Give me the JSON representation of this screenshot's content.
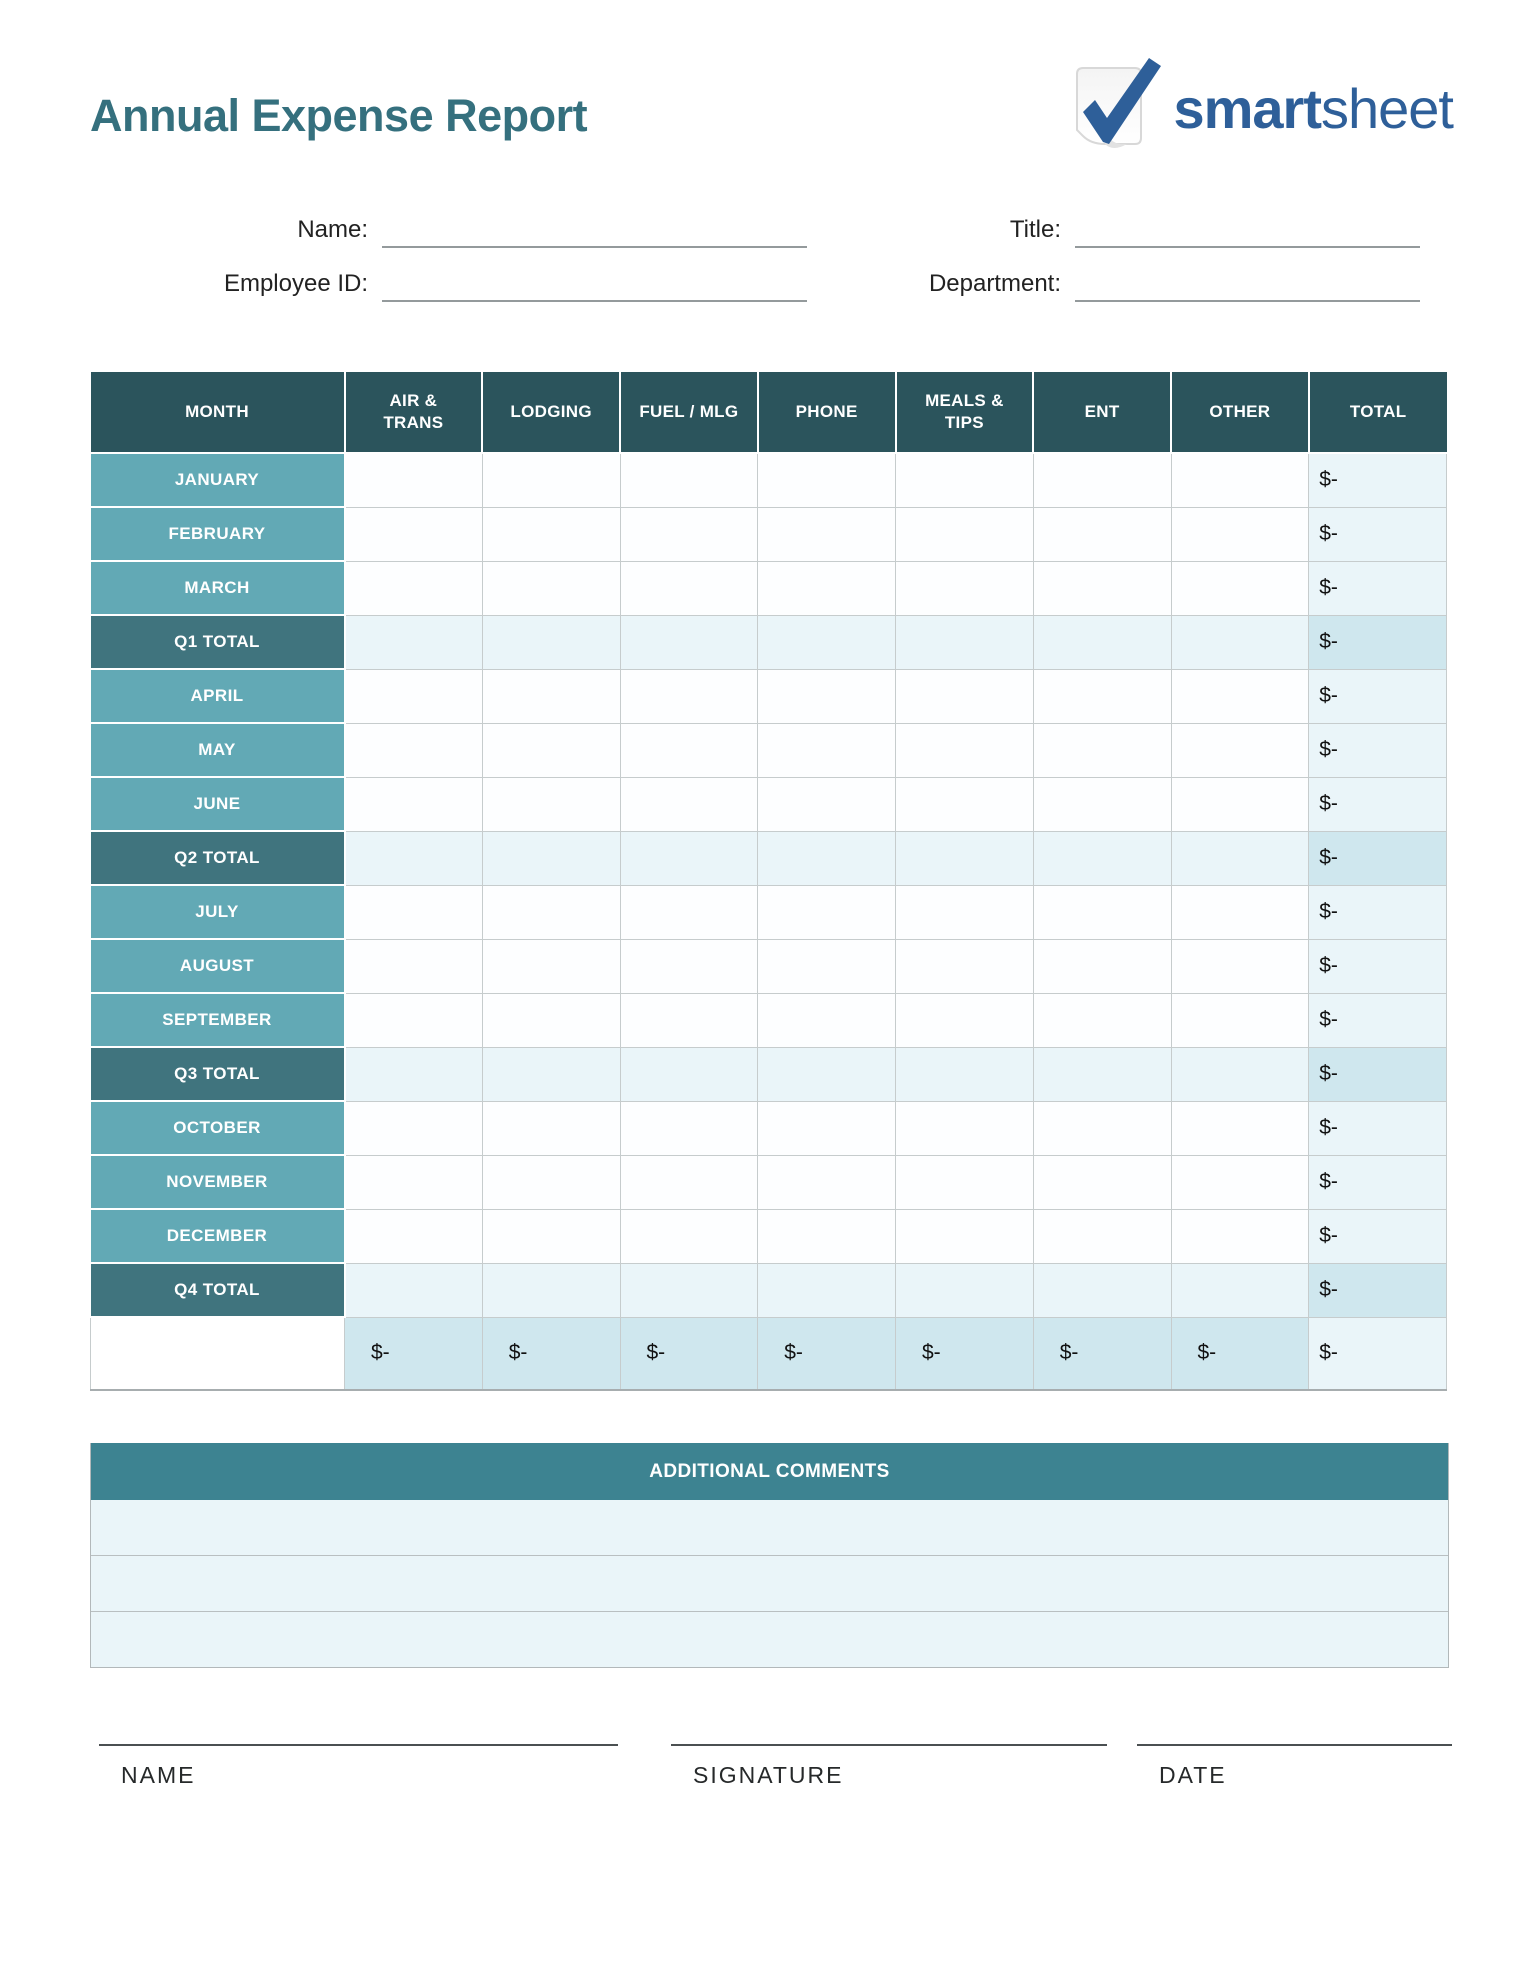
{
  "page": {
    "title": "Annual Expense Report"
  },
  "logo": {
    "brand_bold": "smart",
    "brand_light": "sheet"
  },
  "form": {
    "name_label": "Name:",
    "name_value": "",
    "title_label": "Title:",
    "title_value": "",
    "employee_id_label": "Employee ID:",
    "employee_id_value": "",
    "department_label": "Department:",
    "department_value": ""
  },
  "expense_table": {
    "columns": [
      "MONTH",
      "AIR & TRANS",
      "LODGING",
      "FUEL / MLG",
      "PHONE",
      "MEALS & TIPS",
      "ENT",
      "OTHER",
      "TOTAL"
    ],
    "rows": [
      {
        "label": "JANUARY",
        "type": "month",
        "cells": [
          "",
          "",
          "",
          "",
          "",
          "",
          ""
        ],
        "total": "$-"
      },
      {
        "label": "FEBRUARY",
        "type": "month",
        "cells": [
          "",
          "",
          "",
          "",
          "",
          "",
          ""
        ],
        "total": "$-"
      },
      {
        "label": "MARCH",
        "type": "month",
        "cells": [
          "",
          "",
          "",
          "",
          "",
          "",
          ""
        ],
        "total": "$-"
      },
      {
        "label": "Q1 TOTAL",
        "type": "quarter",
        "cells": [
          "",
          "",
          "",
          "",
          "",
          "",
          ""
        ],
        "total": "$-"
      },
      {
        "label": "APRIL",
        "type": "month",
        "cells": [
          "",
          "",
          "",
          "",
          "",
          "",
          ""
        ],
        "total": "$-"
      },
      {
        "label": "MAY",
        "type": "month",
        "cells": [
          "",
          "",
          "",
          "",
          "",
          "",
          ""
        ],
        "total": "$-"
      },
      {
        "label": "JUNE",
        "type": "month",
        "cells": [
          "",
          "",
          "",
          "",
          "",
          "",
          ""
        ],
        "total": "$-"
      },
      {
        "label": "Q2 TOTAL",
        "type": "quarter",
        "cells": [
          "",
          "",
          "",
          "",
          "",
          "",
          ""
        ],
        "total": "$-"
      },
      {
        "label": "JULY",
        "type": "month",
        "cells": [
          "",
          "",
          "",
          "",
          "",
          "",
          ""
        ],
        "total": "$-"
      },
      {
        "label": "AUGUST",
        "type": "month",
        "cells": [
          "",
          "",
          "",
          "",
          "",
          "",
          ""
        ],
        "total": "$-"
      },
      {
        "label": "SEPTEMBER",
        "type": "month",
        "cells": [
          "",
          "",
          "",
          "",
          "",
          "",
          ""
        ],
        "total": "$-"
      },
      {
        "label": "Q3 TOTAL",
        "type": "quarter",
        "cells": [
          "",
          "",
          "",
          "",
          "",
          "",
          ""
        ],
        "total": "$-"
      },
      {
        "label": "OCTOBER",
        "type": "month",
        "cells": [
          "",
          "",
          "",
          "",
          "",
          "",
          ""
        ],
        "total": "$-"
      },
      {
        "label": "NOVEMBER",
        "type": "month",
        "cells": [
          "",
          "",
          "",
          "",
          "",
          "",
          ""
        ],
        "total": "$-"
      },
      {
        "label": "DECEMBER",
        "type": "month",
        "cells": [
          "",
          "",
          "",
          "",
          "",
          "",
          ""
        ],
        "total": "$-"
      },
      {
        "label": "Q4 TOTAL",
        "type": "quarter",
        "cells": [
          "",
          "",
          "",
          "",
          "",
          "",
          ""
        ],
        "total": "$-"
      },
      {
        "label": "",
        "type": "grand",
        "cells": [
          "$-",
          "$-",
          "$-",
          "$-",
          "$-",
          "$-",
          "$-"
        ],
        "total": "$-"
      }
    ]
  },
  "comments": {
    "header": "ADDITIONAL COMMENTS",
    "rows": [
      "",
      "",
      ""
    ]
  },
  "signature": {
    "name_label": "NAME",
    "signature_label": "SIGNATURE",
    "date_label": "DATE"
  },
  "colors": {
    "title_teal": "#35707e",
    "header_teal": "#2b545c",
    "month_teal": "#62a9b5",
    "quarter_teal": "#40747e",
    "comments_teal": "#3d8391",
    "light_cell": "#eaf5f9",
    "medium_cell": "#cfe7ee",
    "logo_blue": "#2e5f99"
  }
}
